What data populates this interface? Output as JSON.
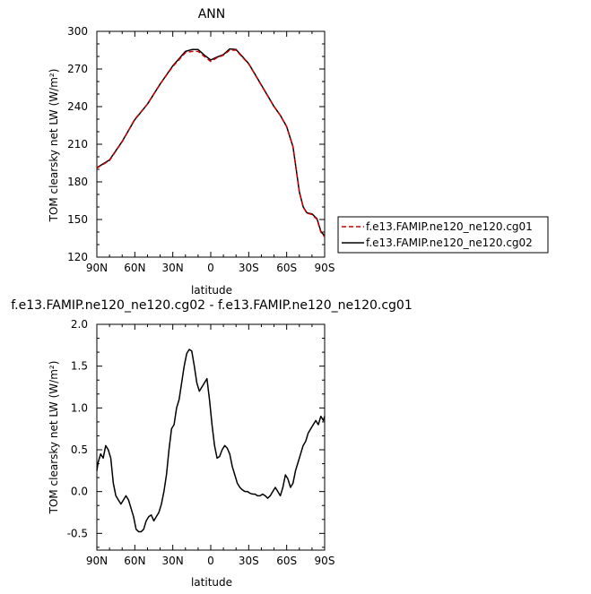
{
  "chart_data": [
    {
      "type": "line",
      "title": "ANN",
      "xlabel": "latitude",
      "ylabel": "TOM clearsky net LW (W/m²)",
      "xlim": [
        90,
        -90
      ],
      "ylim": [
        120,
        300
      ],
      "xticks": [
        90,
        60,
        30,
        0,
        -30,
        -60,
        -90
      ],
      "xtick_labels": [
        "90N",
        "60N",
        "30N",
        "0",
        "30S",
        "60S",
        "90S"
      ],
      "yticks": [
        120,
        150,
        180,
        210,
        240,
        270,
        300
      ],
      "ytick_labels": [
        "120",
        "150",
        "180",
        "210",
        "240",
        "270",
        "300"
      ],
      "legend_position": "right",
      "series": [
        {
          "name": "f.e13.FAMIP.ne120_ne120.cg01",
          "color": "#cc0000",
          "dash": "dashed",
          "x": [
            90,
            80,
            70,
            60,
            50,
            40,
            30,
            20,
            15,
            10,
            5,
            0,
            -5,
            -10,
            -15,
            -20,
            -30,
            -40,
            -50,
            -55,
            -60,
            -65,
            -70,
            -73,
            -76,
            -80,
            -84,
            -87,
            -90
          ],
          "y": [
            191,
            197,
            212,
            230,
            242,
            258,
            272,
            283,
            284,
            284,
            280,
            276,
            279,
            281,
            285,
            285,
            274,
            257,
            240,
            233,
            224,
            208,
            172,
            160,
            155,
            154,
            150,
            140,
            136
          ]
        },
        {
          "name": "f.e13.FAMIP.ne120_ne120.cg02",
          "color": "#000000",
          "dash": "solid",
          "x": [
            90,
            80,
            70,
            60,
            50,
            40,
            30,
            20,
            15,
            10,
            5,
            0,
            -5,
            -10,
            -15,
            -20,
            -30,
            -40,
            -50,
            -55,
            -60,
            -65,
            -70,
            -73,
            -76,
            -80,
            -84,
            -87,
            -90
          ],
          "y": [
            191.3,
            197.5,
            212.2,
            229.6,
            242.0,
            258.0,
            272.5,
            284.0,
            285.5,
            285.5,
            281.0,
            277.2,
            279.5,
            281.5,
            286.0,
            285.5,
            274.3,
            257.2,
            240.1,
            233.0,
            224.0,
            208.0,
            172.1,
            160.2,
            155.3,
            154.5,
            150.5,
            140.6,
            136.8
          ]
        }
      ]
    },
    {
      "type": "line",
      "title": "f.e13.FAMIP.ne120_ne120.cg02 - f.e13.FAMIP.ne120_ne120.cg01",
      "xlabel": "latitude",
      "ylabel": "TOM clearsky net LW (W/m²)",
      "xlim": [
        90,
        -90
      ],
      "ylim": [
        -0.7,
        2.0
      ],
      "xticks": [
        90,
        60,
        30,
        0,
        -30,
        -60,
        -90
      ],
      "xtick_labels": [
        "90N",
        "60N",
        "30N",
        "0",
        "30S",
        "60S",
        "90S"
      ],
      "yticks": [
        -0.5,
        0.0,
        0.5,
        1.0,
        1.5,
        2.0
      ],
      "ytick_labels": [
        "-0.5",
        "0.0",
        "0.5",
        "1.0",
        "1.5",
        "2.0"
      ],
      "series": [
        {
          "color": "#000000",
          "x": [
            90,
            89,
            87,
            85,
            83,
            81,
            79,
            77,
            75,
            73,
            71,
            69,
            67,
            65,
            63,
            61,
            59,
            57,
            55,
            53,
            51,
            49,
            47,
            45,
            43,
            41,
            39,
            37,
            35,
            33,
            31,
            29,
            27,
            25,
            23,
            21,
            19,
            17,
            15,
            13,
            11,
            9,
            7,
            5,
            3,
            1,
            -1,
            -3,
            -5,
            -7,
            -9,
            -11,
            -13,
            -15,
            -17,
            -19,
            -21,
            -23,
            -25,
            -27,
            -29,
            -31,
            -33,
            -35,
            -37,
            -39,
            -41,
            -43,
            -45,
            -47,
            -49,
            -51,
            -53,
            -55,
            -57,
            -59,
            -61,
            -63,
            -65,
            -67,
            -69,
            -71,
            -73,
            -75,
            -77,
            -79,
            -81,
            -83,
            -85,
            -87,
            -89,
            -90
          ],
          "y": [
            0.25,
            0.35,
            0.45,
            0.4,
            0.55,
            0.5,
            0.4,
            0.1,
            -0.05,
            -0.1,
            -0.15,
            -0.1,
            -0.05,
            -0.1,
            -0.2,
            -0.3,
            -0.45,
            -0.48,
            -0.48,
            -0.45,
            -0.35,
            -0.3,
            -0.28,
            -0.35,
            -0.3,
            -0.25,
            -0.15,
            0.0,
            0.2,
            0.5,
            0.75,
            0.8,
            1.0,
            1.1,
            1.3,
            1.5,
            1.65,
            1.7,
            1.68,
            1.5,
            1.3,
            1.2,
            1.25,
            1.3,
            1.35,
            1.1,
            0.8,
            0.55,
            0.4,
            0.42,
            0.5,
            0.55,
            0.52,
            0.45,
            0.3,
            0.2,
            0.1,
            0.05,
            0.02,
            0.0,
            0.0,
            -0.02,
            -0.03,
            -0.03,
            -0.05,
            -0.05,
            -0.03,
            -0.05,
            -0.08,
            -0.05,
            0.0,
            0.05,
            0.0,
            -0.05,
            0.05,
            0.2,
            0.15,
            0.05,
            0.1,
            0.25,
            0.35,
            0.45,
            0.55,
            0.6,
            0.7,
            0.75,
            0.8,
            0.85,
            0.8,
            0.9,
            0.85,
            0.9
          ]
        }
      ]
    }
  ]
}
